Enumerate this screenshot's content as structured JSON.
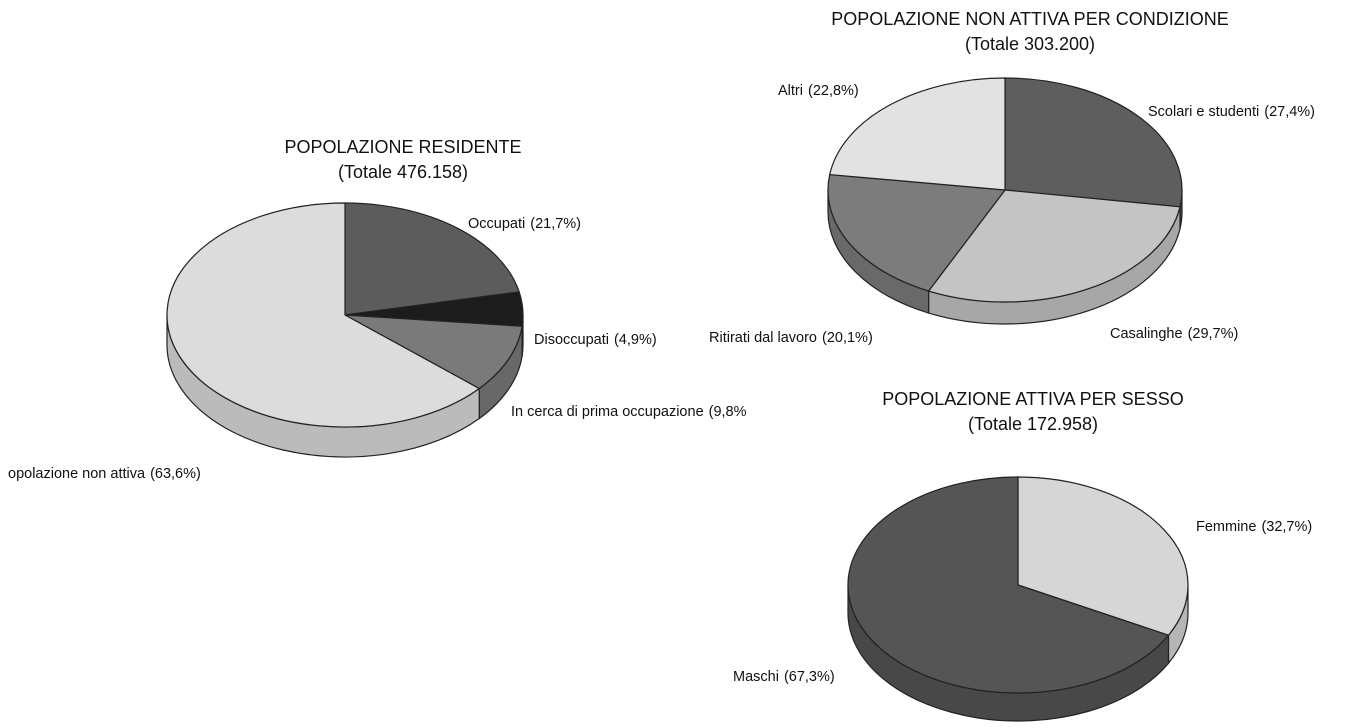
{
  "chart_data": [
    {
      "type": "pie",
      "title": "POPOLAZIONE RESIDENTE",
      "subtitle": "(Totale 476.158)",
      "categories": [
        "Occupati",
        "Disoccupati",
        "In cerca di prima occupazione",
        "opolazione non attiva"
      ],
      "values": [
        21.7,
        4.9,
        9.8,
        63.6
      ],
      "value_labels": [
        "(21,7%)",
        "(4,9%)",
        "(9,8%",
        "(63,6%)"
      ],
      "colors": [
        "#5c5c5c",
        "#1c1c1c",
        "#7a7a7a",
        "#dcdcdc"
      ]
    },
    {
      "type": "pie",
      "title": "POPOLAZIONE NON ATTIVA PER CONDIZIONE",
      "subtitle": "(Totale 303.200)",
      "categories": [
        "Scolari e studenti",
        "Casalinghe",
        "Ritirati dal lavoro",
        "Altri"
      ],
      "values": [
        27.4,
        29.7,
        20.1,
        22.8
      ],
      "value_labels": [
        "(27,4%)",
        "(29,7%)",
        "(20,1%)",
        "(22,8%)"
      ],
      "colors": [
        "#5e5e5e",
        "#c4c4c4",
        "#7c7c7c",
        "#e2e2e2"
      ]
    },
    {
      "type": "pie",
      "title": "POPOLAZIONE ATTIVA PER SESSO",
      "subtitle": "(Totale 172.958)",
      "categories": [
        "Femmine",
        "Maschi"
      ],
      "values": [
        32.7,
        67.3
      ],
      "value_labels": [
        "(32,7%)",
        "(67,3%)"
      ],
      "colors": [
        "#d6d6d6",
        "#555555"
      ]
    }
  ]
}
